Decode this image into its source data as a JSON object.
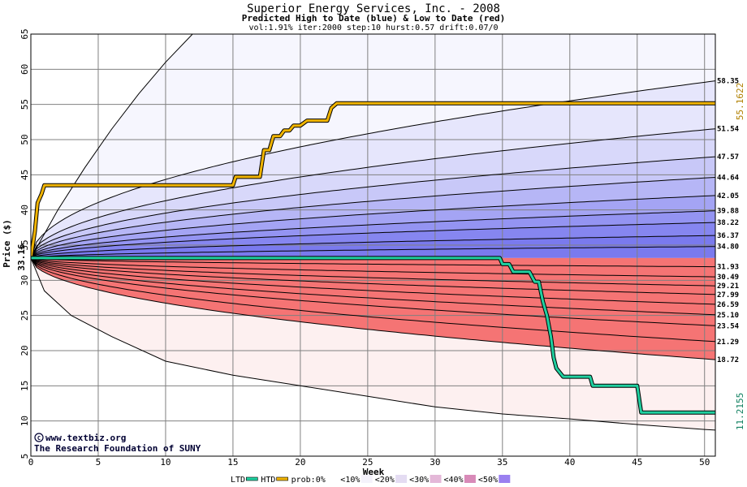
{
  "chart_data": {
    "type": "area",
    "title": "Superior Energy Services, Inc. - 2008",
    "subtitle": "Predicted High to Date (blue) &  Low to Date (red)",
    "params": "vol:1.91% iter:2000 step:10 hurst:0.57 drift:0.07/0",
    "xlabel": "Week",
    "ylabel": "Price ($)",
    "xlim": [
      0,
      50.8
    ],
    "ylim": [
      5,
      65
    ],
    "xticks": [
      "0",
      "5",
      "10",
      "15",
      "20",
      "25",
      "30",
      "35",
      "40",
      "45",
      "50"
    ],
    "yticks": [
      "5",
      "10",
      "15",
      "20",
      "25",
      "30",
      "35",
      "40",
      "45",
      "50",
      "55",
      "60",
      "65"
    ],
    "grid": true,
    "start_price": 33.16,
    "start_label": "33.16",
    "high_series_color": "#f0b400",
    "low_series_color": "#20d0a0",
    "high_final_label": "55.1622",
    "low_final_label": "11.2155",
    "credit_lines": [
      "www.textbiz.org",
      "The Research Foundation of SUNY"
    ],
    "credit_symbol": "C",
    "legend": {
      "position": "bottom",
      "items": [
        {
          "label": "LTD",
          "color": "#20d0a0",
          "kind": "line"
        },
        {
          "label": "HTD",
          "color": "#f0b400",
          "kind": "line"
        },
        {
          "label": "prob:0%",
          "color": "#ffffff",
          "kind": "swatch"
        },
        {
          "label": "<10%",
          "color": "#f4f2fb",
          "kind": "swatch"
        },
        {
          "label": "<20%",
          "color": "#e4dcf2",
          "kind": "swatch"
        },
        {
          "label": "<30%",
          "color": "#e4b8d8",
          "kind": "swatch"
        },
        {
          "label": "<40%",
          "color": "#d88ab8",
          "kind": "swatch"
        },
        {
          "label": "<50%",
          "color": "#9a80f0",
          "kind": "swatch"
        }
      ]
    },
    "upper_percentiles": [
      {
        "label": "58.35",
        "final": 58.35
      },
      {
        "label": "51.54",
        "final": 51.54
      },
      {
        "label": "47.57",
        "final": 47.57
      },
      {
        "label": "44.64",
        "final": 44.64
      },
      {
        "label": "42.05",
        "final": 42.05
      },
      {
        "label": "39.88",
        "final": 39.88
      },
      {
        "label": "38.22",
        "final": 38.22
      },
      {
        "label": "36.37",
        "final": 36.37
      },
      {
        "label": "34.80",
        "final": 34.8
      }
    ],
    "lower_percentiles": [
      {
        "label": "31.93",
        "final": 31.93
      },
      {
        "label": "30.49",
        "final": 30.49
      },
      {
        "label": "29.21",
        "final": 29.21
      },
      {
        "label": "27.99",
        "final": 27.99
      },
      {
        "label": "26.59",
        "final": 26.59
      },
      {
        "label": "25.10",
        "final": 25.1
      },
      {
        "label": "23.54",
        "final": 23.54
      },
      {
        "label": "21.29",
        "final": 21.29
      },
      {
        "label": "18.72",
        "final": 18.72
      }
    ],
    "upper_band_fills": [
      "#f6f6fe",
      "#e6e6fc",
      "#d8d8fa",
      "#c8c8f8",
      "#b6b6f6",
      "#a4a4f4",
      "#9494f2",
      "#8686f0",
      "#7a7aee"
    ],
    "lower_band_fills": [
      "#fdf0f0",
      "#fde2e2",
      "#fcd4d4",
      "#fbc4c4",
      "#faabab",
      "#f99b9b",
      "#f78c8c",
      "#f67f7f",
      "#f57474"
    ],
    "outer_upper_curve": [
      [
        0,
        33.16
      ],
      [
        2,
        40
      ],
      [
        4,
        46
      ],
      [
        6,
        51.5
      ],
      [
        8,
        56.5
      ],
      [
        10,
        61
      ],
      [
        12,
        65
      ],
      [
        12.5,
        65.5
      ]
    ],
    "outer_lower_curve": [
      [
        0,
        33.16
      ],
      [
        1,
        28.5
      ],
      [
        3,
        25
      ],
      [
        6,
        22
      ],
      [
        10,
        18.5
      ],
      [
        15,
        16.5
      ],
      [
        20,
        15
      ],
      [
        25,
        13.5
      ],
      [
        30,
        12
      ],
      [
        35,
        11
      ],
      [
        40,
        10.3
      ],
      [
        45,
        9.5
      ],
      [
        50,
        8.8
      ],
      [
        50.8,
        8.7
      ]
    ],
    "high_to_date": [
      [
        0,
        33.16
      ],
      [
        0.3,
        37
      ],
      [
        0.5,
        41
      ],
      [
        0.8,
        42.3
      ],
      [
        1,
        43.5
      ],
      [
        15,
        43.5
      ],
      [
        15.2,
        44.7
      ],
      [
        17,
        44.7
      ],
      [
        17.3,
        48.5
      ],
      [
        17.7,
        48.5
      ],
      [
        18,
        50.5
      ],
      [
        18.5,
        50.5
      ],
      [
        18.8,
        51.3
      ],
      [
        19.2,
        51.3
      ],
      [
        19.5,
        52
      ],
      [
        20,
        52
      ],
      [
        20.5,
        52.7
      ],
      [
        22,
        52.7
      ],
      [
        22.3,
        54.5
      ],
      [
        22.7,
        55.16
      ],
      [
        50.8,
        55.16
      ]
    ],
    "low_to_date": [
      [
        0,
        33.16
      ],
      [
        34.8,
        33.16
      ],
      [
        35,
        32.3
      ],
      [
        35.5,
        32.3
      ],
      [
        35.8,
        31.2
      ],
      [
        37,
        31.2
      ],
      [
        37.4,
        29.8
      ],
      [
        37.7,
        29.8
      ],
      [
        38,
        27
      ],
      [
        38.3,
        25
      ],
      [
        38.6,
        22
      ],
      [
        38.8,
        19
      ],
      [
        39,
        17.5
      ],
      [
        39.5,
        16.3
      ],
      [
        41.5,
        16.3
      ],
      [
        41.7,
        15
      ],
      [
        45,
        15
      ],
      [
        45.3,
        11.2
      ],
      [
        50.8,
        11.2
      ]
    ]
  }
}
